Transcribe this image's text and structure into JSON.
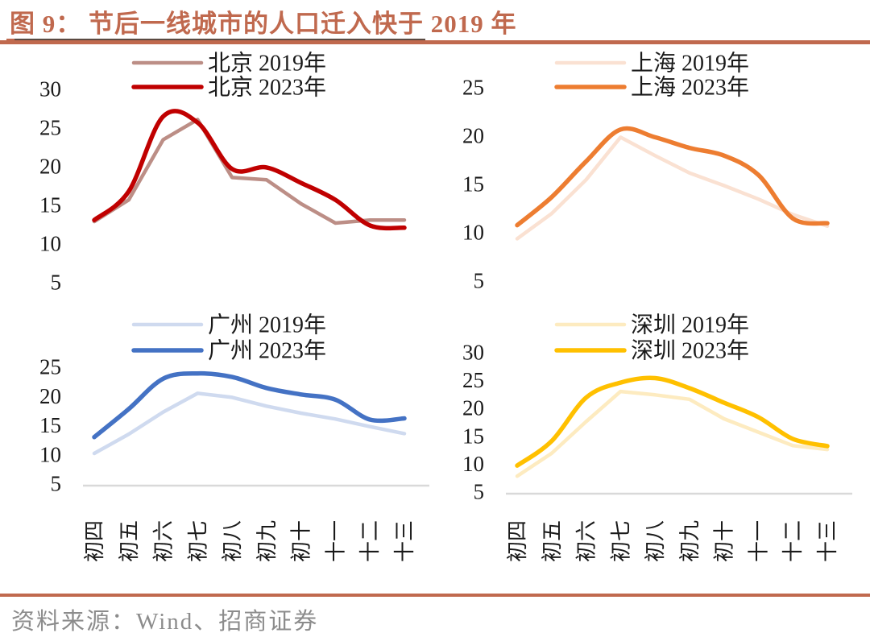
{
  "title": "图 9： 节后一线城市的人口迁入快于 2019 年",
  "source": "资料来源：Wind、招商证券",
  "accent_color": "#C0694E",
  "x_categories": [
    "初四",
    "初五",
    "初六",
    "初七",
    "初八",
    "初九",
    "初十",
    "十一",
    "十二",
    "十三"
  ],
  "chart_data": [
    {
      "type": "line",
      "city": "北京",
      "x": [
        "初四",
        "初五",
        "初六",
        "初七",
        "初八",
        "初九",
        "初十",
        "十一",
        "十二",
        "十三"
      ],
      "yticks": [
        30,
        25,
        20,
        15,
        10,
        5
      ],
      "ylim": [
        5,
        30
      ],
      "grid": false,
      "legend_position": "top",
      "series": [
        {
          "name": "北京 2019年",
          "color": "#BC8E86",
          "values": [
            12.8,
            15.6,
            23.4,
            26.0,
            18.5,
            18.2,
            15.1,
            12.6,
            13.0,
            13.0
          ]
        },
        {
          "name": "北京 2023年",
          "color": "#C00000",
          "values": [
            13.0,
            16.7,
            26.4,
            25.6,
            19.6,
            19.8,
            17.8,
            15.6,
            12.3,
            12.0
          ]
        }
      ]
    },
    {
      "type": "line",
      "city": "上海",
      "x": [
        "初四",
        "初五",
        "初六",
        "初七",
        "初八",
        "初九",
        "初十",
        "十一",
        "十二",
        "十三"
      ],
      "yticks": [
        25,
        20,
        15,
        10,
        5
      ],
      "ylim": [
        5,
        25
      ],
      "grid": false,
      "legend_position": "top",
      "series": [
        {
          "name": "上海 2019年",
          "color": "#FAE1D2",
          "values": [
            9.3,
            11.9,
            15.4,
            19.8,
            17.9,
            16.1,
            14.8,
            13.4,
            11.8,
            10.6
          ]
        },
        {
          "name": "上海 2023年",
          "color": "#ED7D31",
          "values": [
            10.7,
            13.6,
            17.3,
            20.6,
            19.8,
            18.7,
            17.9,
            15.9,
            11.4,
            10.9
          ]
        }
      ]
    },
    {
      "type": "line",
      "city": "广州",
      "x": [
        "初四",
        "初五",
        "初六",
        "初七",
        "初八",
        "初九",
        "初十",
        "十一",
        "十二",
        "十三"
      ],
      "yticks": [
        25,
        20,
        15,
        10,
        5
      ],
      "ylim": [
        5,
        25
      ],
      "grid": false,
      "legend_position": "top",
      "series": [
        {
          "name": "广州 2019年",
          "color": "#CFDAEF",
          "values": [
            10.1,
            13.4,
            17.2,
            20.4,
            19.7,
            18.2,
            17.0,
            16.0,
            14.7,
            13.5
          ]
        },
        {
          "name": "广州 2023年",
          "color": "#4472C4",
          "values": [
            12.9,
            17.7,
            22.9,
            23.8,
            23.2,
            21.3,
            20.2,
            19.3,
            15.9,
            16.1
          ]
        }
      ]
    },
    {
      "type": "line",
      "city": "深圳",
      "x": [
        "初四",
        "初五",
        "初六",
        "初七",
        "初八",
        "初九",
        "初十",
        "十一",
        "十二",
        "十三"
      ],
      "yticks": [
        30,
        25,
        20,
        15,
        10,
        5
      ],
      "ylim": [
        5,
        30
      ],
      "grid": false,
      "legend_position": "top",
      "series": [
        {
          "name": "深圳 2019年",
          "color": "#FDEBC0",
          "values": [
            7.7,
            11.8,
            17.5,
            22.9,
            22.3,
            21.5,
            18.0,
            15.6,
            13.2,
            12.5
          ]
        },
        {
          "name": "深圳 2023年",
          "color": "#FFC000",
          "values": [
            9.6,
            14.0,
            21.8,
            24.5,
            25.3,
            23.5,
            20.9,
            18.3,
            14.4,
            13.1
          ]
        }
      ]
    }
  ]
}
